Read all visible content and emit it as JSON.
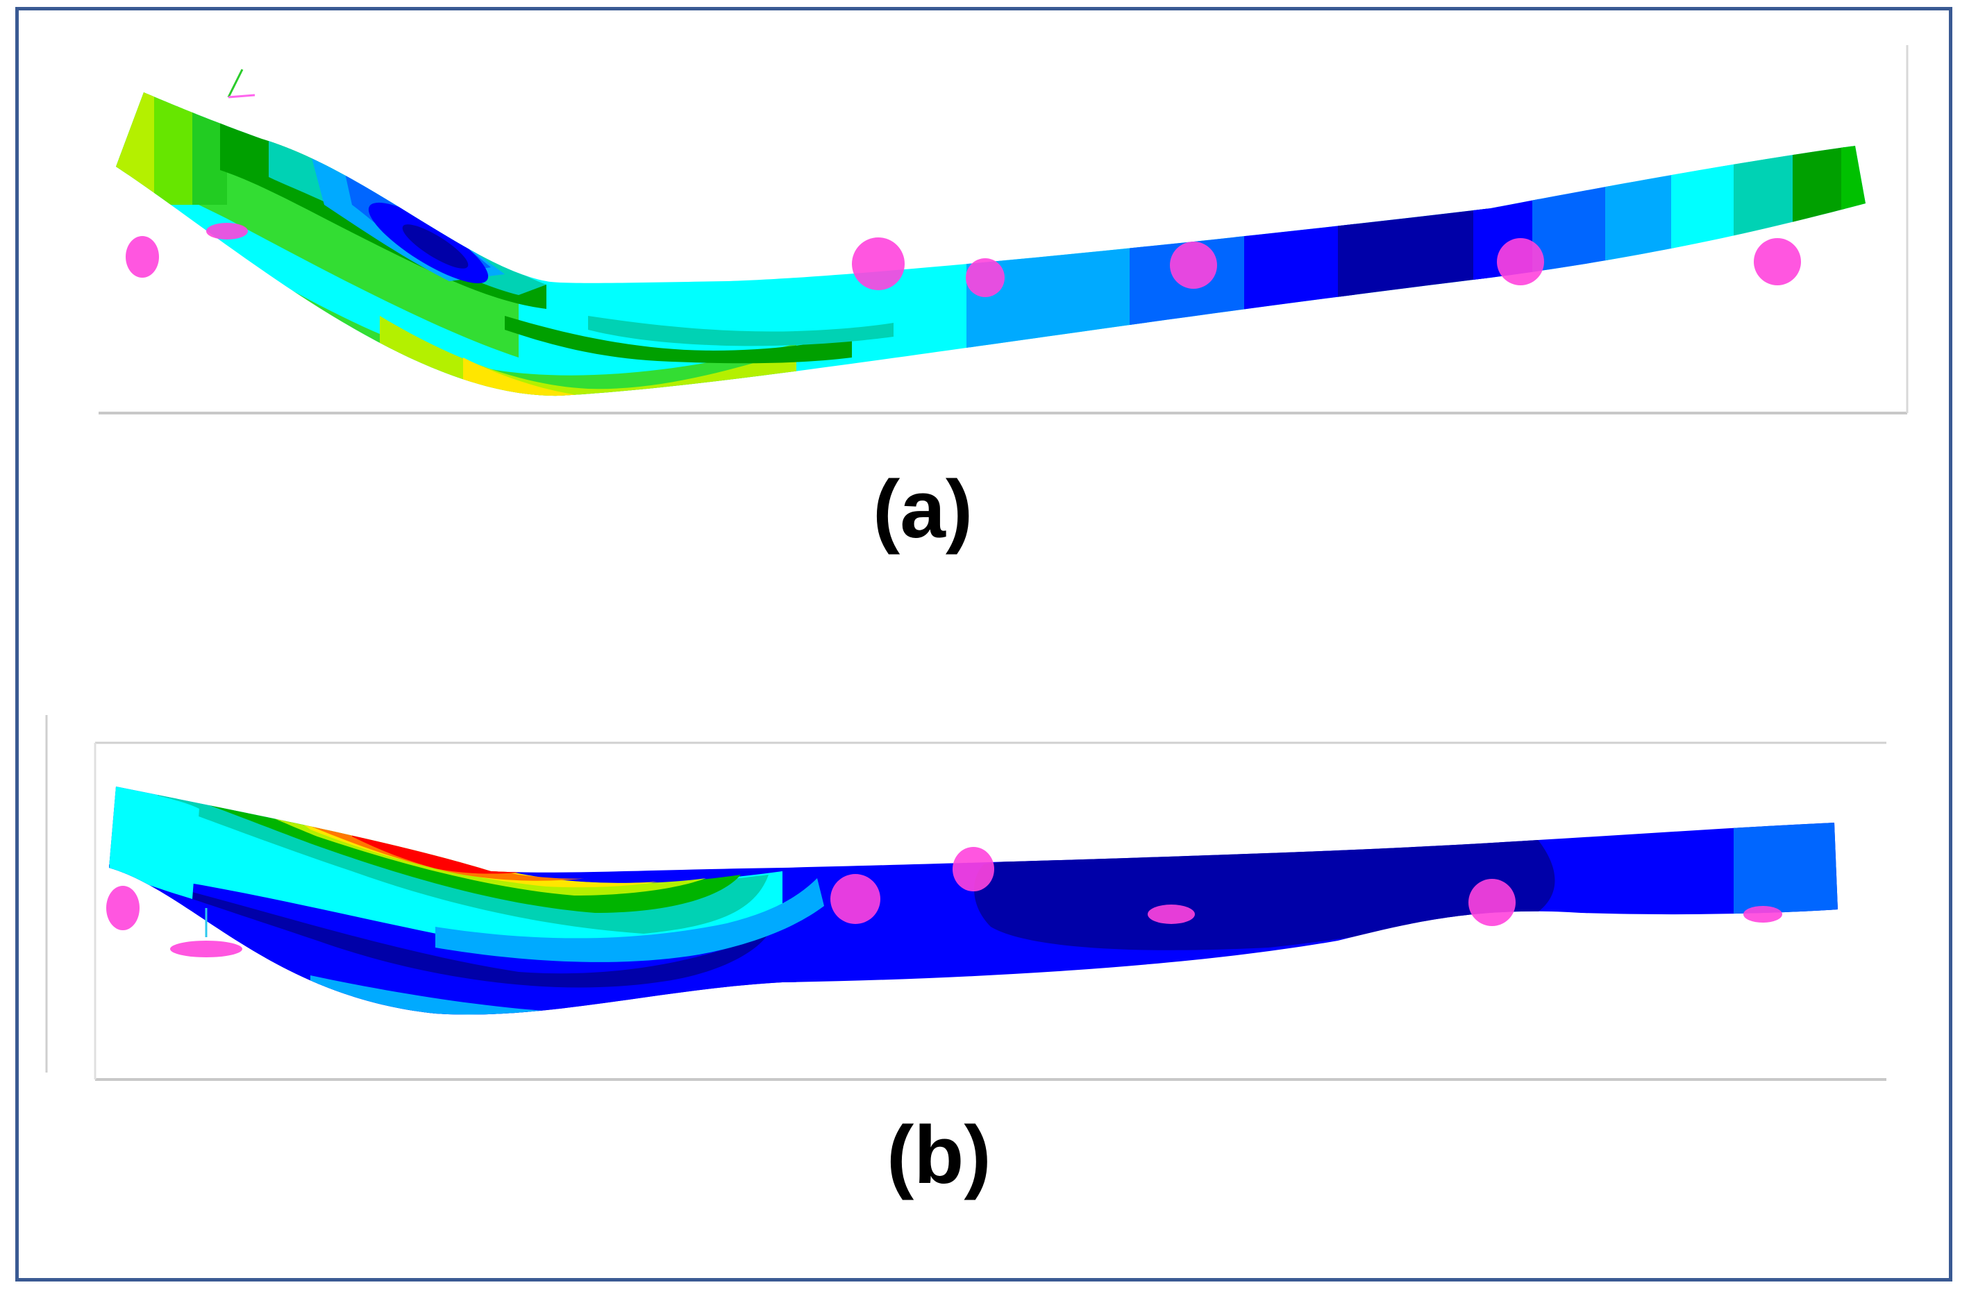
{
  "figure": {
    "panels": [
      {
        "id": "a",
        "caption": "(a)",
        "palette": {
          "dark_blue": "#0000a8",
          "blue": "#0000ff",
          "mid_blue": "#0066ff",
          "light_blue": "#00aaff",
          "cyan": "#00ffff",
          "teal": "#00d2b4",
          "green": "#00b400",
          "light_green": "#33dd33",
          "yellow_green": "#b4f000",
          "yellow": "#ffe600",
          "boundary_marker": "#ff44dd"
        }
      },
      {
        "id": "b",
        "caption": "(b)",
        "palette": {
          "dark_blue": "#0000a8",
          "blue": "#0000ff",
          "mid_blue": "#0066ff",
          "light_blue": "#00aaff",
          "cyan": "#00ffff",
          "green": "#00b400",
          "yellow": "#ffe600",
          "orange": "#ff7700",
          "red": "#ff0000",
          "boundary_marker": "#ff44dd"
        }
      }
    ],
    "border_color": "#3a5a93"
  }
}
